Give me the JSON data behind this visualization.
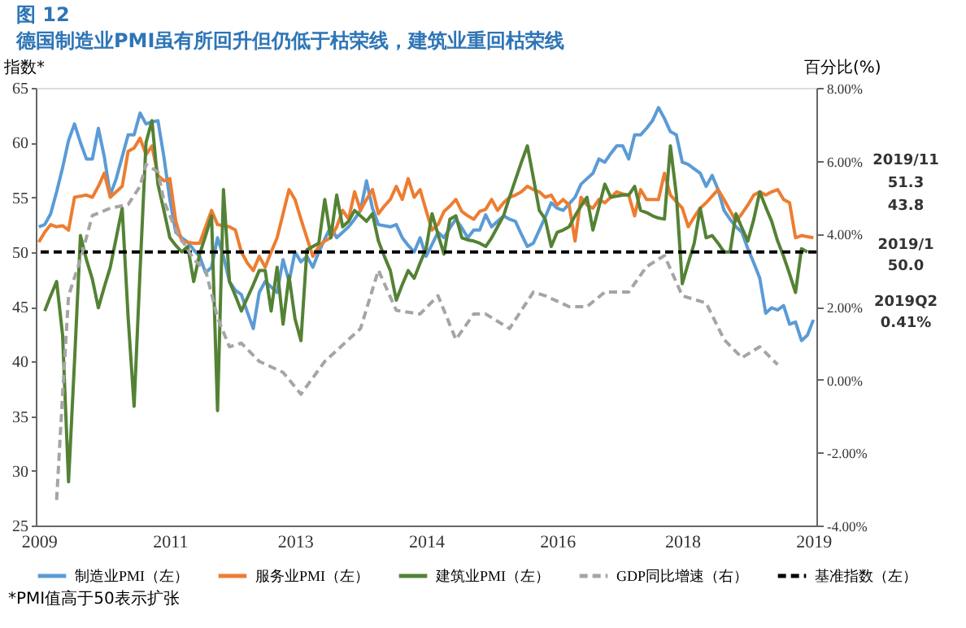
{
  "chart_data": {
    "type": "line",
    "title": "图 12",
    "subtitle": "德国制造业PMI虽有所回升但仍低于枯荣线，建筑业重回枯荣线",
    "ylabel": "指数*",
    "y2label": "百分比(%)",
    "categories": [
      "2009",
      null,
      null,
      null,
      null,
      null,
      null,
      null,
      null,
      null,
      null,
      null,
      null,
      null,
      null,
      null,
      null,
      null,
      null,
      null,
      null,
      null,
      "2011",
      null,
      null,
      null,
      null,
      null,
      null,
      null,
      null,
      null,
      null,
      null,
      null,
      null,
      null,
      null,
      null,
      null,
      null,
      null,
      null,
      "2013",
      null,
      null,
      null,
      null,
      null,
      null,
      null,
      null,
      null,
      null,
      null,
      null,
      null,
      null,
      null,
      null,
      null,
      null,
      null,
      null,
      null,
      "2014",
      null,
      null,
      null,
      null,
      null,
      null,
      null,
      null,
      null,
      null,
      null,
      null,
      null,
      null,
      null,
      null,
      null,
      null,
      null,
      null,
      null,
      "2016",
      null,
      null,
      null,
      null,
      null,
      null,
      null,
      null,
      null,
      null,
      null,
      null,
      null,
      null,
      null,
      null,
      null,
      null,
      null,
      null,
      "2018",
      null,
      null,
      null,
      null,
      null,
      null,
      null,
      null,
      null,
      null,
      null,
      null,
      null,
      null,
      null,
      null,
      null,
      null,
      null,
      null,
      null,
      "2019"
    ],
    "ylim": [
      25,
      65
    ],
    "yticks": [
      25,
      30,
      35,
      40,
      45,
      50,
      55,
      60,
      65
    ],
    "y2lim": [
      -4,
      8
    ],
    "y2ticks": [
      {
        "value": -4,
        "label": "-4.00%"
      },
      {
        "value": -2,
        "label": "-2.00%"
      },
      {
        "value": 0,
        "label": "0.00%"
      },
      {
        "value": 2,
        "label": "2.00%"
      },
      {
        "value": 4,
        "label": "4.00%"
      },
      {
        "value": 6,
        "label": "6.00%"
      },
      {
        "value": 8,
        "label": "8.00%"
      }
    ],
    "grid": false,
    "legend": "bottom",
    "marker": "none",
    "series": [
      {
        "name": "制造业PMI（左）",
        "color": "#5b9bd5",
        "line_style": "solid",
        "values": [
          52.3,
          52.5,
          53.5,
          55.5,
          57.7,
          60.2,
          61.7,
          60,
          58.5,
          58.5,
          61.3,
          58.7,
          55.2,
          56.7,
          58.7,
          60.7,
          60.7,
          62.7,
          61.7,
          61.9,
          62,
          58.7,
          54.8,
          51.8,
          51.3,
          50.9,
          50.2,
          49.6,
          48.1,
          48.6,
          51.3,
          49.6,
          47.3,
          46.5,
          46.1,
          44.5,
          43,
          46.3,
          47.3,
          46.8,
          46.3,
          49.3,
          47.3,
          50,
          49.1,
          49.6,
          48.6,
          50,
          51.2,
          52.3,
          51.3,
          51.8,
          52.3,
          53,
          53.8,
          56.5,
          54,
          52.5,
          52.4,
          52.3,
          52.5,
          51.3,
          50.6,
          50,
          51.3,
          49.6,
          50.7,
          51.8,
          51.3,
          52.2,
          53,
          52.2,
          51.3,
          52,
          52,
          53.4,
          52.3,
          52.8,
          53.3,
          53,
          52.8,
          51.6,
          50.5,
          50.8,
          52,
          53.2,
          54.5,
          54,
          53.8,
          54.4,
          55,
          56.2,
          56.7,
          57.2,
          58.5,
          58.2,
          59,
          59.7,
          59.7,
          58.5,
          60.7,
          60.7,
          61.3,
          62,
          63.2,
          62.2,
          61,
          60.7,
          58.2,
          58,
          57.6,
          57.2,
          56,
          57,
          55.7,
          53.8,
          53,
          52.3,
          51.8,
          50.3,
          49,
          47.6,
          44.4,
          44.9,
          44.7,
          45.1,
          43.4,
          43.6,
          41.9,
          42.4,
          43.8
        ]
      },
      {
        "name": "服务业PMI（左）",
        "color": "#ed7d31",
        "line_style": "solid",
        "values": [
          50.9,
          51.8,
          52.5,
          52.3,
          52.4,
          52,
          55,
          55.1,
          55.2,
          55,
          56,
          57.2,
          55,
          55.5,
          56,
          59.2,
          59.5,
          60.4,
          58.9,
          59.7,
          57,
          56.5,
          56.7,
          52.8,
          51,
          50.9,
          50.8,
          50.8,
          52.3,
          53.8,
          52.5,
          52.4,
          52.3,
          52,
          50,
          49,
          48.3,
          49.6,
          48.6,
          50,
          51.3,
          53.5,
          55.7,
          54.8,
          53,
          51.3,
          49.6,
          50.5,
          51,
          51.3,
          52.3,
          53.8,
          53,
          55.5,
          53.8,
          54.8,
          55.7,
          53.5,
          54.2,
          54.8,
          56,
          54.8,
          56.7,
          55,
          55.7,
          53.8,
          52,
          52.5,
          53.7,
          54.2,
          54.8,
          53.7,
          53.3,
          53,
          53.7,
          53.9,
          54.8,
          53.8,
          54.5,
          55,
          55.2,
          55.5,
          56,
          55.7,
          55.5,
          55,
          55.2,
          54.3,
          54.8,
          54.3,
          51,
          55,
          54.3,
          54,
          54.8,
          54.5,
          55,
          55.5,
          55.3,
          55.2,
          53.3,
          55.7,
          54.8,
          54.8,
          54.8,
          57.2,
          55.2,
          54.6,
          54,
          52.3,
          53.2,
          54,
          54.5,
          55.1,
          55.7,
          54.8,
          53.8,
          52.8,
          53.5,
          54.3,
          55.2,
          55.5,
          55.2,
          55.5,
          55.7,
          54.8,
          54.5,
          51.3,
          51.5,
          51.4,
          51.3
        ]
      },
      {
        "name": "建筑业PMI（左）",
        "color": "#548235",
        "line_style": "solid",
        "values": [
          null,
          44.6,
          46,
          47.3,
          42.4,
          29,
          40,
          51.5,
          49.3,
          47.5,
          44.9,
          46.8,
          48.6,
          51.3,
          54,
          44,
          35.9,
          48.3,
          60,
          62,
          56.2,
          53.8,
          51.3,
          50.6,
          50,
          50.5,
          47.3,
          49.8,
          51.5,
          53.3,
          35.5,
          55.7,
          47.3,
          46,
          44.6,
          45.8,
          47,
          48.3,
          48.3,
          44.6,
          48.6,
          43.4,
          47.8,
          43.9,
          41.9,
          50.2,
          50.5,
          50.8,
          54.8,
          51.3,
          55.2,
          52.3,
          52.8,
          53.8,
          53.3,
          52.8,
          53.5,
          51,
          49.6,
          48.3,
          45.6,
          47,
          48.3,
          47.6,
          49,
          50.3,
          53.5,
          51.6,
          49.8,
          53,
          53.3,
          51.3,
          51.1,
          51,
          50.8,
          50.5,
          51.3,
          52.3,
          53.3,
          55,
          56.6,
          58.2,
          59.7,
          56.8,
          53.8,
          53,
          50.5,
          51.8,
          52,
          52.3,
          53.3,
          54.2,
          55,
          52,
          54.1,
          56.2,
          55,
          55.1,
          55.2,
          55.2,
          56,
          53.8,
          53.6,
          53.3,
          53.1,
          53,
          59.7,
          55.2,
          47.1,
          49,
          50.8,
          54,
          51.3,
          51.5,
          50.8,
          50,
          50,
          53.5,
          52.2,
          51,
          53,
          55.5,
          54.1,
          52.8,
          51,
          49.6,
          48,
          46.3,
          50.3,
          50,
          null
        ]
      },
      {
        "name": "GDP同比增速（右）",
        "color": "#a5a5a5",
        "line_style": "dashed",
        "axis": "y2",
        "values": [
          null,
          null,
          null,
          -3.3,
          -0.4,
          2.3,
          null,
          3.3,
          null,
          4.5,
          null,
          null,
          4.7,
          null,
          null,
          4.8,
          null,
          5.3,
          5.9,
          null,
          5.7,
          4.9,
          null,
          4.1,
          null,
          null,
          3.3,
          null,
          3.0,
          null,
          1.7,
          null,
          0.9,
          null,
          1.0,
          null,
          null,
          0.5,
          null,
          null,
          null,
          0.2,
          null,
          null,
          -0.4,
          null,
          null,
          null,
          0.5,
          null,
          0.8,
          null,
          null,
          null,
          1.4,
          null,
          null,
          3.0,
          null,
          null,
          1.9,
          null,
          null,
          null,
          1.8,
          null,
          null,
          2.3,
          null,
          null,
          1.1,
          null,
          null,
          1.8,
          null,
          1.8,
          null,
          null,
          null,
          1.4,
          null,
          null,
          null,
          2.4,
          null,
          2.3,
          null,
          null,
          null,
          2.0,
          null,
          null,
          2.0,
          null,
          null,
          2.4,
          null,
          null,
          null,
          2.4,
          null,
          null,
          3.1,
          null,
          null,
          3.4,
          null,
          null,
          2.3,
          null,
          null,
          null,
          2.1,
          null,
          null,
          1.1,
          null,
          null,
          0.6,
          null,
          null,
          0.9,
          null,
          null,
          0.41,
          null,
          null,
          null,
          null,
          null,
          null
        ]
      }
    ],
    "ref_lines": [
      {
        "axis": "y",
        "value": 50,
        "label": "基准指数（左）",
        "color": "#000000",
        "line_style": "dashed"
      }
    ],
    "annotations": [
      "2019/11",
      "51.3",
      "43.8",
      "2019/1",
      "50.0",
      "2019Q2",
      "0.41%",
      "*PMI值高于50表示扩张"
    ]
  }
}
